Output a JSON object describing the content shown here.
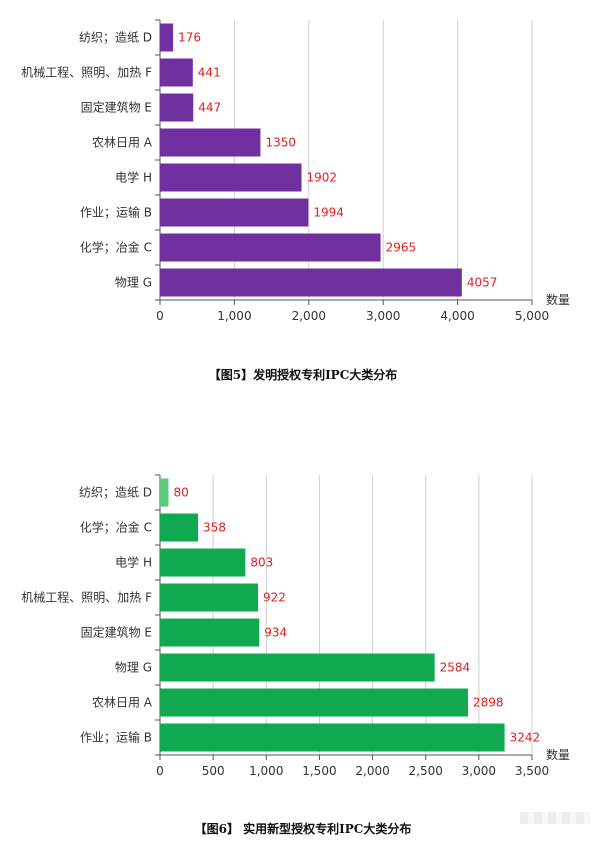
{
  "chart_data": [
    {
      "type": "bar",
      "orientation": "horizontal",
      "categories": [
        "纺织；造纸 D",
        "机械工程、照明、加热 F",
        "固定建筑物 E",
        "农林日用 A",
        "电学 H",
        "作业；运输 B",
        "化学；冶金 C",
        "物理 G"
      ],
      "values": [
        176,
        441,
        447,
        1350,
        1902,
        1994,
        2965,
        4057
      ],
      "xlim": [
        0,
        5000
      ],
      "xticks": [
        0,
        1000,
        2000,
        3000,
        4000,
        5000
      ],
      "xtick_labels": [
        "0",
        "1,000",
        "2,000",
        "3,000",
        "4,000",
        "5,000"
      ],
      "xlabel": "数量",
      "bar_color": "#7030a0",
      "label_color": "#e02020",
      "grid": true,
      "caption": "【图5】发明授权专利IPC大类分布"
    },
    {
      "type": "bar",
      "orientation": "horizontal",
      "categories": [
        "纺织；造纸 D",
        "化学；冶金 C",
        "电学 H",
        "机械工程、照明、加热 F",
        "固定建筑物 E",
        "物理 G",
        "农林日用 A",
        "作业；运输 B"
      ],
      "values": [
        80,
        358,
        803,
        922,
        934,
        2584,
        2898,
        3242
      ],
      "xlim": [
        0,
        3500
      ],
      "xticks": [
        0,
        500,
        1000,
        1500,
        2000,
        2500,
        3000,
        3500
      ],
      "xtick_labels": [
        "0",
        "500",
        "1,000",
        "1,500",
        "2,000",
        "2,500",
        "3,000",
        "3,500"
      ],
      "xlabel": "数量",
      "bar_color": "#10a950",
      "first_bar_color": "#5bc880",
      "label_color": "#e02020",
      "grid": true,
      "caption": "【图6】 实用新型授权专利IPC大类分布"
    }
  ]
}
